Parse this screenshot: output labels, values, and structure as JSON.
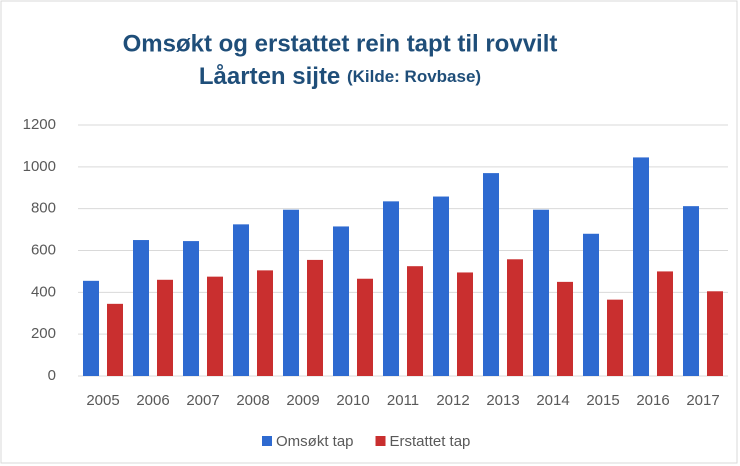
{
  "chart_data": {
    "type": "bar",
    "title": "Omsøkt og erstattet rein tapt til rovvilt",
    "subtitle": "Låarten sijte",
    "source": "(Kilde: Rovbase)",
    "categories": [
      "2005",
      "2006",
      "2007",
      "2008",
      "2009",
      "2010",
      "2011",
      "2012",
      "2013",
      "2014",
      "2015",
      "2016",
      "2017"
    ],
    "series": [
      {
        "name": "Omsøkt tap",
        "color": "#2e6ad0",
        "values": [
          455,
          650,
          645,
          725,
          795,
          715,
          835,
          858,
          970,
          795,
          680,
          1045,
          812
        ]
      },
      {
        "name": "Erstattet tap",
        "color": "#c92f2f",
        "values": [
          345,
          460,
          475,
          505,
          555,
          465,
          525,
          495,
          558,
          450,
          365,
          500,
          405
        ]
      }
    ],
    "ylim": [
      0,
      1200
    ],
    "yticks": [
      0,
      200,
      400,
      600,
      800,
      1000,
      1200
    ],
    "grid": true,
    "legend": "bottom"
  }
}
